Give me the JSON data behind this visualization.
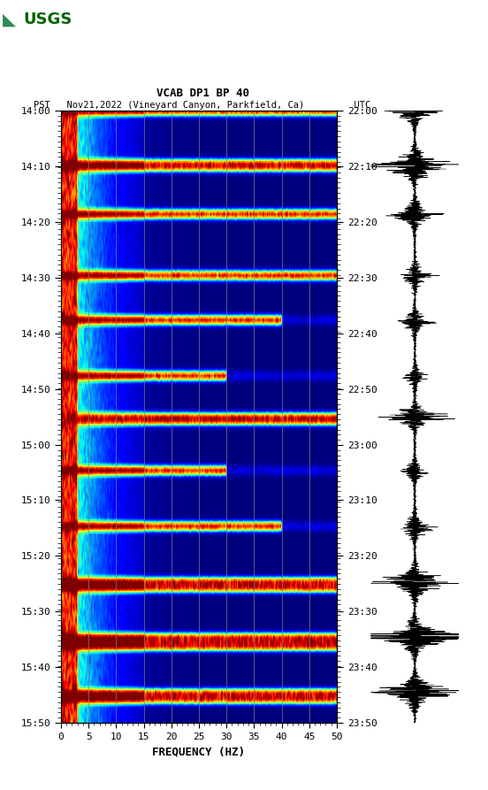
{
  "title_line1": "VCAB DP1 BP 40",
  "title_line2": "PST   Nov21,2022 (Vineyard Canyon, Parkfield, Ca)         UTC",
  "xlabel": "FREQUENCY (HZ)",
  "freq_min": 0,
  "freq_max": 50,
  "pst_ticks": [
    "14:00",
    "14:10",
    "14:20",
    "14:30",
    "14:40",
    "14:50",
    "15:00",
    "15:10",
    "15:20",
    "15:30",
    "15:40",
    "15:50"
  ],
  "utc_ticks": [
    "22:00",
    "22:10",
    "22:20",
    "22:30",
    "22:40",
    "22:50",
    "23:00",
    "23:10",
    "23:20",
    "23:30",
    "23:40",
    "23:50"
  ],
  "xticks": [
    0,
    5,
    10,
    15,
    20,
    25,
    30,
    35,
    40,
    45,
    50
  ],
  "background_color": "#ffffff",
  "colormap": "jet",
  "logo_color": "#006400",
  "grid_color": "#808080",
  "tick_label_fontsize": 8,
  "axis_label_fontsize": 9,
  "title_fontsize": 9,
  "n_time": 220,
  "n_freq": 500,
  "seed": 42,
  "event_times_frac": [
    0.0,
    0.09,
    0.17,
    0.27,
    0.345,
    0.435,
    0.5,
    0.59,
    0.68,
    0.77,
    0.86,
    0.95
  ],
  "event_widths": [
    2,
    3,
    2,
    2,
    2,
    2,
    3,
    2,
    2,
    4,
    5,
    4
  ],
  "event_freq_reach": [
    500,
    500,
    500,
    500,
    400,
    300,
    500,
    300,
    400,
    500,
    500,
    500
  ],
  "strong_event_at": 0.5,
  "low_freq_cutoff": 0.3
}
